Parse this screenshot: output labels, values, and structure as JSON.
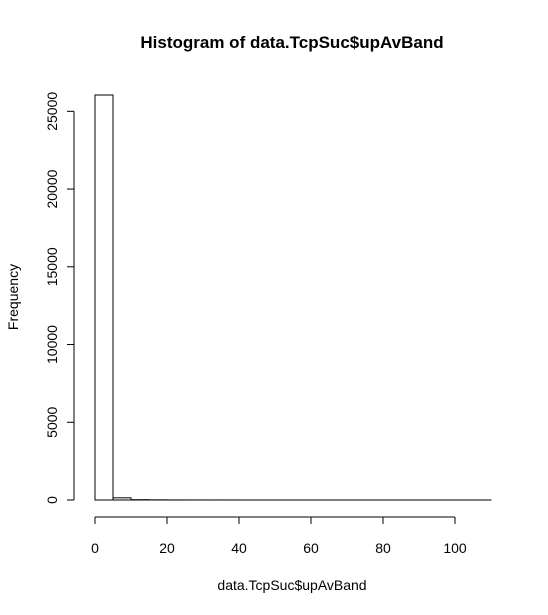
{
  "chart_data": {
    "type": "bar",
    "title": "Histogram of data.TcpSuc$upAvBand",
    "xlabel": "data.TcpSuc$upAvBand",
    "ylabel": "Frequency",
    "bin_width": 5,
    "bins": [
      {
        "from": 0,
        "to": 5,
        "count": 26050
      },
      {
        "from": 5,
        "to": 10,
        "count": 140
      },
      {
        "from": 10,
        "to": 15,
        "count": 20
      },
      {
        "from": 15,
        "to": 20,
        "count": 10
      },
      {
        "from": 20,
        "to": 25,
        "count": 5
      },
      {
        "from": 25,
        "to": 30,
        "count": 3
      },
      {
        "from": 30,
        "to": 35,
        "count": 2
      },
      {
        "from": 35,
        "to": 40,
        "count": 2
      },
      {
        "from": 40,
        "to": 45,
        "count": 1
      },
      {
        "from": 45,
        "to": 50,
        "count": 1
      },
      {
        "from": 50,
        "to": 55,
        "count": 1
      },
      {
        "from": 55,
        "to": 60,
        "count": 1
      },
      {
        "from": 60,
        "to": 65,
        "count": 1
      },
      {
        "from": 65,
        "to": 70,
        "count": 1
      },
      {
        "from": 70,
        "to": 75,
        "count": 1
      },
      {
        "from": 75,
        "to": 80,
        "count": 1
      },
      {
        "from": 80,
        "to": 85,
        "count": 1
      },
      {
        "from": 85,
        "to": 90,
        "count": 1
      },
      {
        "from": 90,
        "to": 95,
        "count": 1
      },
      {
        "from": 95,
        "to": 100,
        "count": 1
      },
      {
        "from": 100,
        "to": 105,
        "count": 1
      },
      {
        "from": 105,
        "to": 110,
        "count": 1
      }
    ],
    "xlim": [
      0,
      110
    ],
    "ylim": [
      0,
      26050
    ],
    "x_ticks": [
      0,
      20,
      40,
      60,
      80,
      100
    ],
    "y_ticks": [
      0,
      5000,
      10000,
      15000,
      20000,
      25000
    ],
    "grid": false,
    "bar_fill": "#ffffff",
    "bar_stroke": "#000000"
  }
}
